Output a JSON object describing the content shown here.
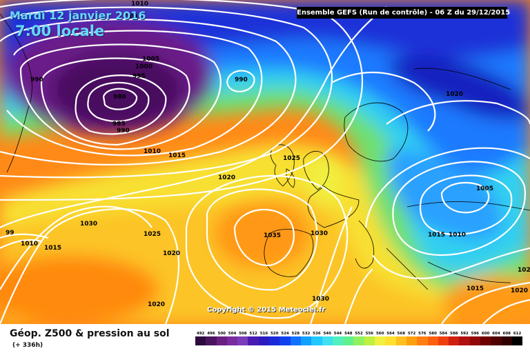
{
  "header": {
    "date": "Mardi 12 janvier 2016",
    "time": "7:00 locale",
    "model": "Ensemble GEFS  (Run de contrôle)  - 06 Z du 29/12/2015"
  },
  "copyright": "Copyright © 2015 Meteociel.fr",
  "footer": {
    "title": "Géop. Z500 & pression au sol",
    "subtitle": "(+ 336h)"
  },
  "isobars": [
    {
      "label": "1010"
    },
    {
      "label": "1015"
    },
    {
      "label": "1005"
    },
    {
      "label": "1000"
    },
    {
      "label": "995"
    },
    {
      "label": "990"
    },
    {
      "label": "980"
    },
    {
      "label": "985"
    },
    {
      "label": "990"
    },
    {
      "label": "990"
    },
    {
      "label": "1010"
    },
    {
      "label": "1015"
    },
    {
      "label": "1025"
    },
    {
      "label": "1020"
    },
    {
      "label": "1020"
    },
    {
      "label": "1030"
    },
    {
      "label": "1025"
    },
    {
      "label": "1020"
    },
    {
      "label": "1035"
    },
    {
      "label": "1030"
    },
    {
      "label": "1030"
    },
    {
      "label": "1020"
    },
    {
      "label": "1005"
    },
    {
      "label": "1015"
    },
    {
      "label": "1010"
    },
    {
      "label": "1015"
    },
    {
      "label": "1020"
    },
    {
      "label": "1020"
    },
    {
      "label": "99"
    },
    {
      "label": "1010"
    },
    {
      "label": "1015"
    }
  ],
  "legend": {
    "labels": [
      "492",
      "496",
      "500",
      "504",
      "508",
      "512",
      "516",
      "520",
      "524",
      "528",
      "532",
      "536",
      "540",
      "544",
      "548",
      "552",
      "556",
      "560",
      "564",
      "568",
      "572",
      "576",
      "580",
      "584",
      "588",
      "592",
      "596",
      "600",
      "604",
      "608",
      "612"
    ],
    "colors": [
      "#2d0a3e",
      "#4b1460",
      "#6b1f80",
      "#7b2ba0",
      "#7a3cb8",
      "#4a1bb0",
      "#2a1ac0",
      "#1a2ad8",
      "#1040f0",
      "#1070ff",
      "#12a0ff",
      "#20c8ff",
      "#40e0f0",
      "#50f0c0",
      "#60f090",
      "#90f060",
      "#c0f040",
      "#f0f040",
      "#ffe030",
      "#ffc020",
      "#ffa010",
      "#ff8010",
      "#ff6010",
      "#f04010",
      "#d02010",
      "#b01010",
      "#900808",
      "#700000",
      "#500000",
      "#300000",
      "#000000"
    ]
  },
  "colors": {
    "low_core": "#3a0a48",
    "deep_blue": "#0a1ab0",
    "mid_blue": "#1a6aff",
    "green": "#60e060",
    "yellow": "#ffff40",
    "orange": "#ff9020",
    "isobar": "#ffffff"
  }
}
